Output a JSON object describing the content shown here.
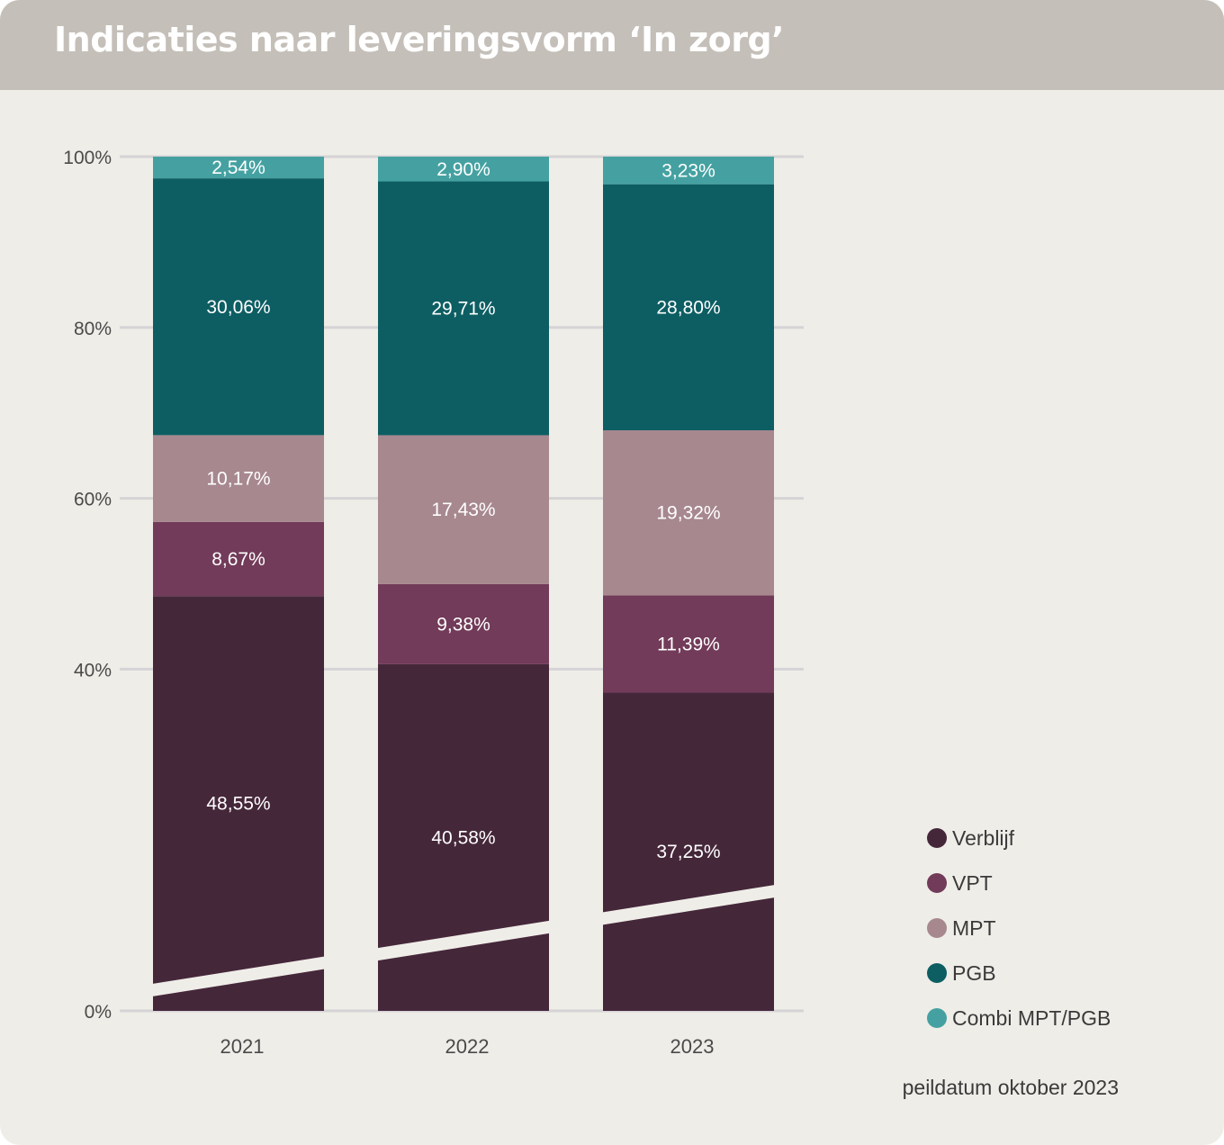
{
  "title": "Indicaties naar leveringsvorm ‘In zorg’",
  "footnote": "peildatum oktober 2023",
  "chart_data": {
    "type": "bar",
    "stacked": true,
    "normalized": true,
    "title": "Indicaties naar leveringsvorm ‘In zorg’",
    "categories": [
      "2021",
      "2022",
      "2023"
    ],
    "yticks": [
      "0%",
      "40%",
      "60%",
      "80%",
      "100%"
    ],
    "ytick_values": [
      0,
      40,
      60,
      80,
      100
    ],
    "ylim": [
      0,
      100
    ],
    "grid": true,
    "legend_position": "bottom-right",
    "axis_break": true,
    "series": [
      {
        "name": "Verblijf",
        "color": "#45273a",
        "values": [
          48.55,
          40.58,
          37.25
        ],
        "labels": [
          "48,55%",
          "40,58%",
          "37,25%"
        ]
      },
      {
        "name": "VPT",
        "color": "#723b59",
        "values": [
          8.67,
          9.38,
          11.39
        ],
        "labels": [
          "8,67%",
          "9,38%",
          "11,39%"
        ]
      },
      {
        "name": "MPT",
        "color": "#a7888f",
        "values": [
          10.17,
          17.43,
          19.32
        ],
        "labels": [
          "10,17%",
          "17,43%",
          "19,32%"
        ]
      },
      {
        "name": "PGB",
        "color": "#0d5e63",
        "values": [
          30.06,
          29.71,
          28.8
        ],
        "labels": [
          "30,06%",
          "29,71%",
          "28,80%"
        ]
      },
      {
        "name": "Combi MPT/PGB",
        "color": "#45a1a1",
        "values": [
          2.54,
          2.9,
          3.23
        ],
        "labels": [
          "2,54%",
          "2,90%",
          "3,23%"
        ]
      }
    ]
  }
}
